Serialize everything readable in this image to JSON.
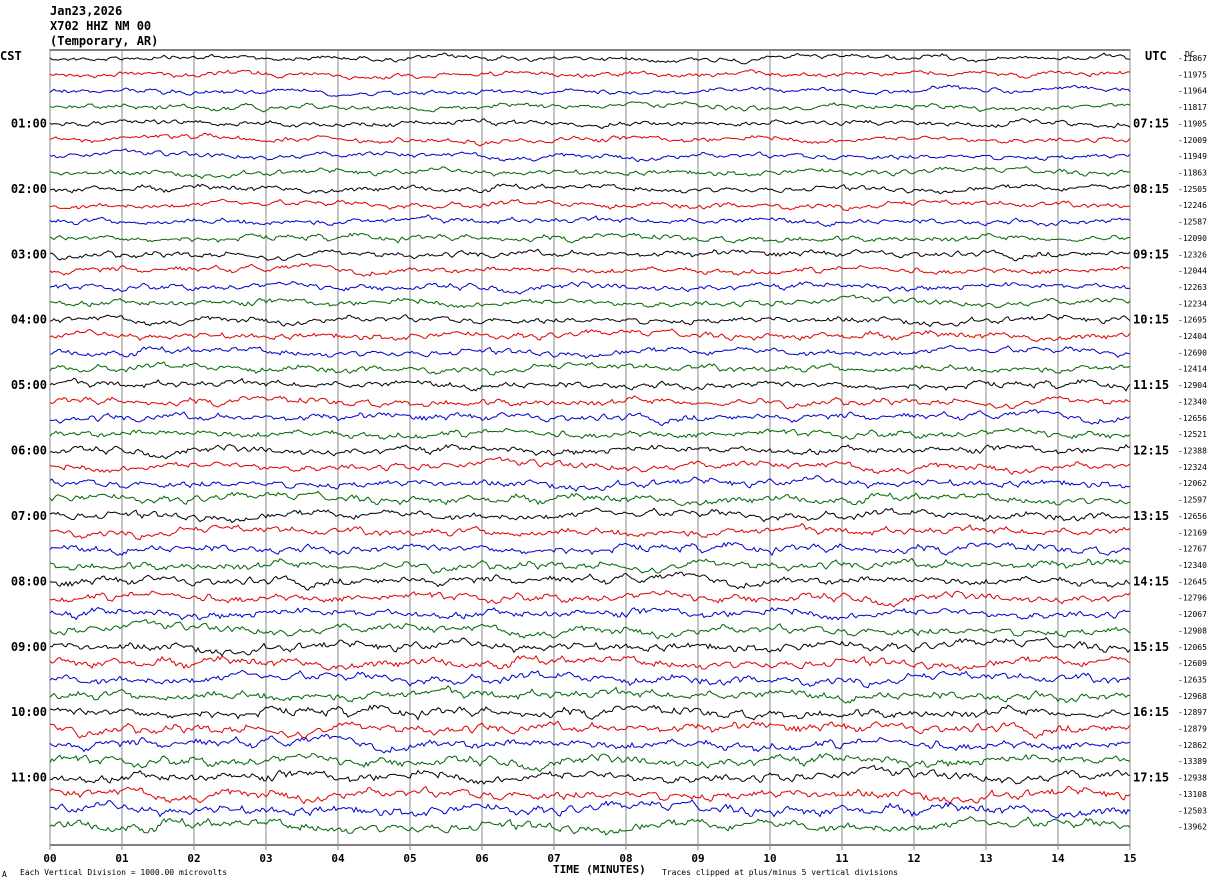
{
  "header": {
    "date": "Jan23,2026",
    "station": "X702 HHZ NM 00",
    "location": "(Temporary, AR)"
  },
  "left_tz": "CST",
  "right_tz": "UTC",
  "dc_label": "DC",
  "footer": {
    "scale": "Each Vertical Division = 1000.00 microvolts",
    "xlabel": "TIME (MINUTES)",
    "clip_note": "Traces clipped at plus/minus 5 vertical divisions",
    "corner_mark": "A"
  },
  "chart_data": {
    "type": "line",
    "title": "",
    "xlabel": "TIME (MINUTES)",
    "ylabel": "",
    "xlim": [
      0,
      15
    ],
    "x_ticks": [
      "00",
      "01",
      "02",
      "03",
      "04",
      "05",
      "06",
      "07",
      "08",
      "09",
      "10",
      "11",
      "12",
      "13",
      "14",
      "15"
    ],
    "left_time_labels": [
      "01:00",
      "02:00",
      "03:00",
      "04:00",
      "05:00",
      "06:00",
      "07:00",
      "08:00",
      "09:00",
      "10:00",
      "11:00"
    ],
    "right_time_labels": [
      "07:15",
      "08:15",
      "09:15",
      "10:15",
      "11:15",
      "12:15",
      "13:15",
      "14:15",
      "15:15",
      "16:15",
      "17:15"
    ],
    "trace_colors": [
      "#000000",
      "#dd0000",
      "#0000cc",
      "#006600"
    ],
    "dc_offsets": [
      -11867,
      -11975,
      -11964,
      -11817,
      -11905,
      -12009,
      -11949,
      -11863,
      -12505,
      -12246,
      -12587,
      -12090,
      -12326,
      -12044,
      -12263,
      -12234,
      -12695,
      -12404,
      -12690,
      -12414,
      -12904,
      -12340,
      -12656,
      -12521,
      -12388,
      -12324,
      -12062,
      -12597,
      -12656,
      -12169,
      -12767,
      -12340,
      -12645,
      -12796,
      -12067,
      -12908,
      -12065,
      -12609,
      -12635,
      -12968,
      -12897,
      -12879,
      -12862,
      -13389,
      -12938,
      -13108,
      -12503,
      -13962
    ],
    "grid": true,
    "legend": "none"
  }
}
